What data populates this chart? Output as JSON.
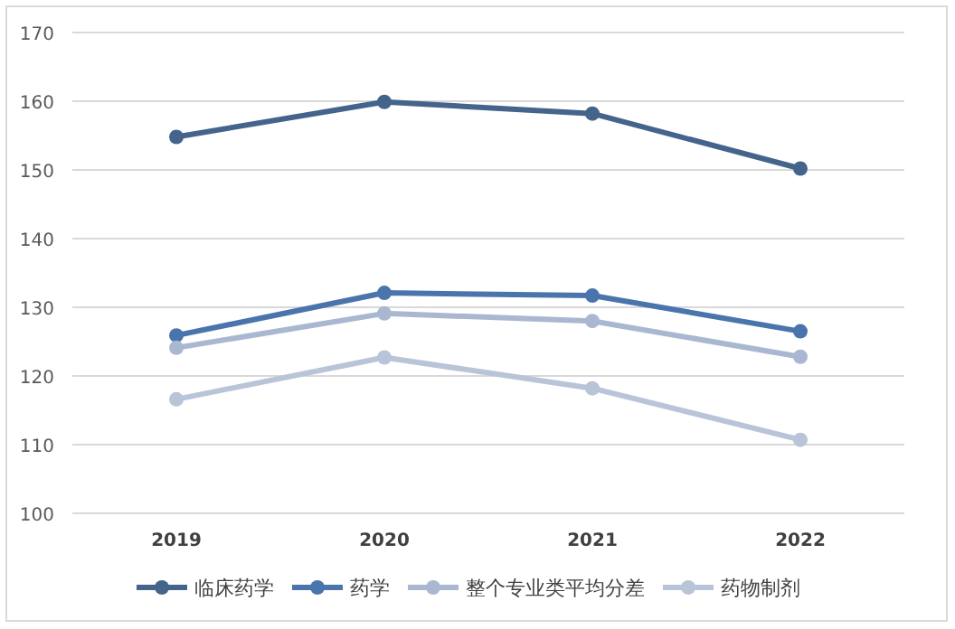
{
  "chart_data": {
    "type": "line",
    "categories": [
      "2019",
      "2020",
      "2021",
      "2022"
    ],
    "series": [
      {
        "name": "临床药学",
        "color": "#44648c",
        "values": [
          154.8,
          159.9,
          158.2,
          150.2
        ]
      },
      {
        "name": "药学",
        "color": "#4a74ac",
        "values": [
          125.9,
          132.1,
          131.7,
          126.5
        ]
      },
      {
        "name": "整个专业类平均分差",
        "color": "#a9b8d0",
        "values": [
          124.1,
          129.1,
          128.0,
          122.8
        ]
      },
      {
        "name": "药物制剂",
        "color": "#b8c4d8",
        "values": [
          116.6,
          122.7,
          118.2,
          110.7
        ]
      }
    ],
    "ylim": [
      100,
      170
    ],
    "yticks": [
      100,
      110,
      120,
      130,
      140,
      150,
      160,
      170
    ],
    "grid": "y",
    "legend": "bottom",
    "marker": "circle",
    "line_style": "solid"
  }
}
